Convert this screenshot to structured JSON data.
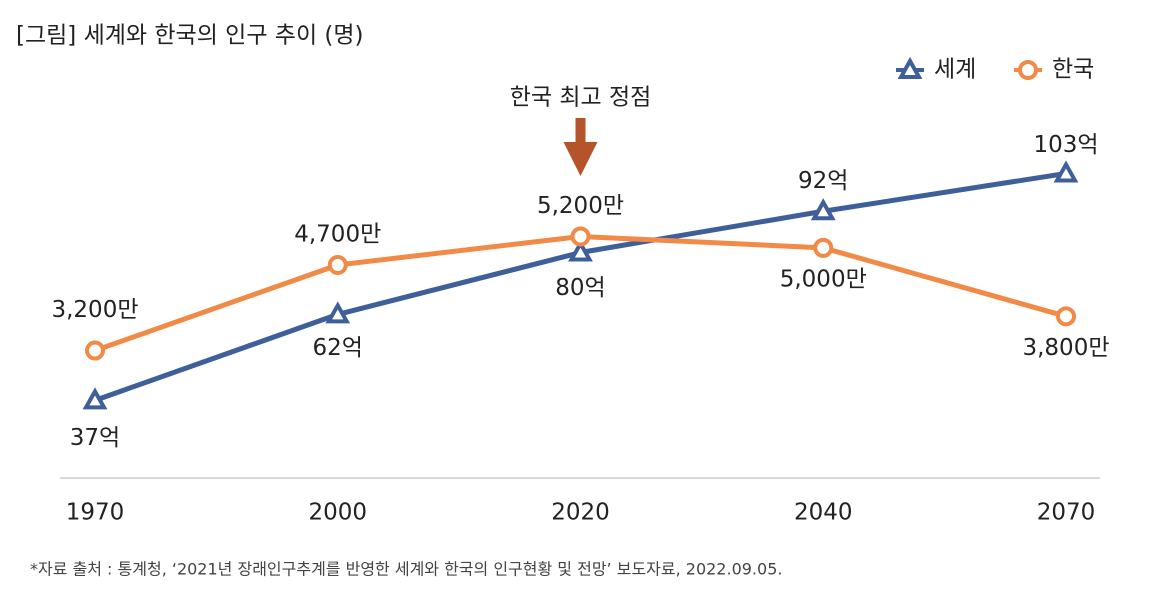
{
  "chart_data": {
    "type": "line",
    "title": "[그림] 세계와 한국의 인구 추이 (명)",
    "categories": [
      "1970",
      "2000",
      "2020",
      "2040",
      "2070"
    ],
    "series": [
      {
        "name": "세계",
        "color": "#3e5f9a",
        "marker": "triangle",
        "values": [
          37,
          62,
          80,
          92,
          103
        ],
        "value_labels": [
          "37억",
          "62억",
          "80억",
          "92억",
          "103억"
        ]
      },
      {
        "name": "한국",
        "color": "#f08a46",
        "marker": "circle",
        "axis": "y2",
        "values": [
          3200,
          4700,
          5200,
          5000,
          3800
        ],
        "value_labels": [
          "3,200만",
          "4,700만",
          "5,200만",
          "5,000만",
          "3,800만"
        ]
      }
    ],
    "ylim": [
      15,
      120
    ],
    "y2lim": [
      1000,
      7330
    ],
    "annotation": {
      "text": "한국 최고 정점",
      "category": 2,
      "color": "#b5532a"
    },
    "legend": "top-right",
    "source": "*자료 출처 : 통계청, ‘2021년 장래인구추계를 반영한 세계와 한국의 인구현황 및 전망’ 보도자료, 2022.09.05."
  }
}
